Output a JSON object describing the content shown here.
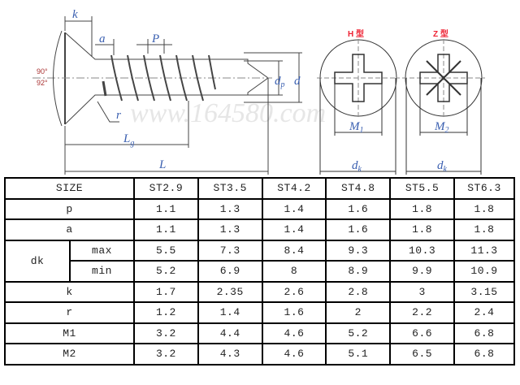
{
  "drawing": {
    "labels": {
      "k": "k",
      "a": "a",
      "P": "P",
      "dp": "d",
      "dp_sub": "p",
      "d": "d",
      "r": "r",
      "Lg": "L",
      "Lg_sub": "g",
      "L": "L",
      "M1": "M",
      "M1_sub": "1",
      "M2": "M",
      "M2_sub": "2",
      "dk1": "d",
      "dk1_sub": "k",
      "dk2": "d",
      "dk2_sub": "k"
    },
    "angle_top": "90°",
    "angle_bottom": "92°",
    "type_h": "H 型",
    "type_z": "Z 型",
    "watermark": "www.164580.com",
    "colors": {
      "dimension_label": "#3a5fb0",
      "angle": "#a33333",
      "type_label": "#ee2233"
    }
  },
  "table": {
    "header": {
      "label": "SIZE",
      "sizes": [
        "ST2.9",
        "ST3.5",
        "ST4.2",
        "ST4.8",
        "ST5.5",
        "ST6.3"
      ]
    },
    "rows": [
      {
        "label": "p",
        "values": [
          "1.1",
          "1.3",
          "1.4",
          "1.6",
          "1.8",
          "1.8"
        ]
      },
      {
        "label": "a",
        "values": [
          "1.1",
          "1.3",
          "1.4",
          "1.6",
          "1.8",
          "1.8"
        ]
      },
      {
        "label": "dk",
        "sub": "max",
        "values": [
          "5.5",
          "7.3",
          "8.4",
          "9.3",
          "10.3",
          "11.3"
        ]
      },
      {
        "label": "",
        "sub": "min",
        "values": [
          "5.2",
          "6.9",
          "8",
          "8.9",
          "9.9",
          "10.9"
        ]
      },
      {
        "label": "k",
        "values": [
          "1.7",
          "2.35",
          "2.6",
          "2.8",
          "3",
          "3.15"
        ]
      },
      {
        "label": "r",
        "values": [
          "1.2",
          "1.4",
          "1.6",
          "2",
          "2.2",
          "2.4"
        ]
      },
      {
        "label": "M1",
        "values": [
          "3.2",
          "4.4",
          "4.6",
          "5.2",
          "6.6",
          "6.8"
        ]
      },
      {
        "label": "M2",
        "values": [
          "3.2",
          "4.3",
          "4.6",
          "5.1",
          "6.5",
          "6.8"
        ]
      }
    ]
  }
}
